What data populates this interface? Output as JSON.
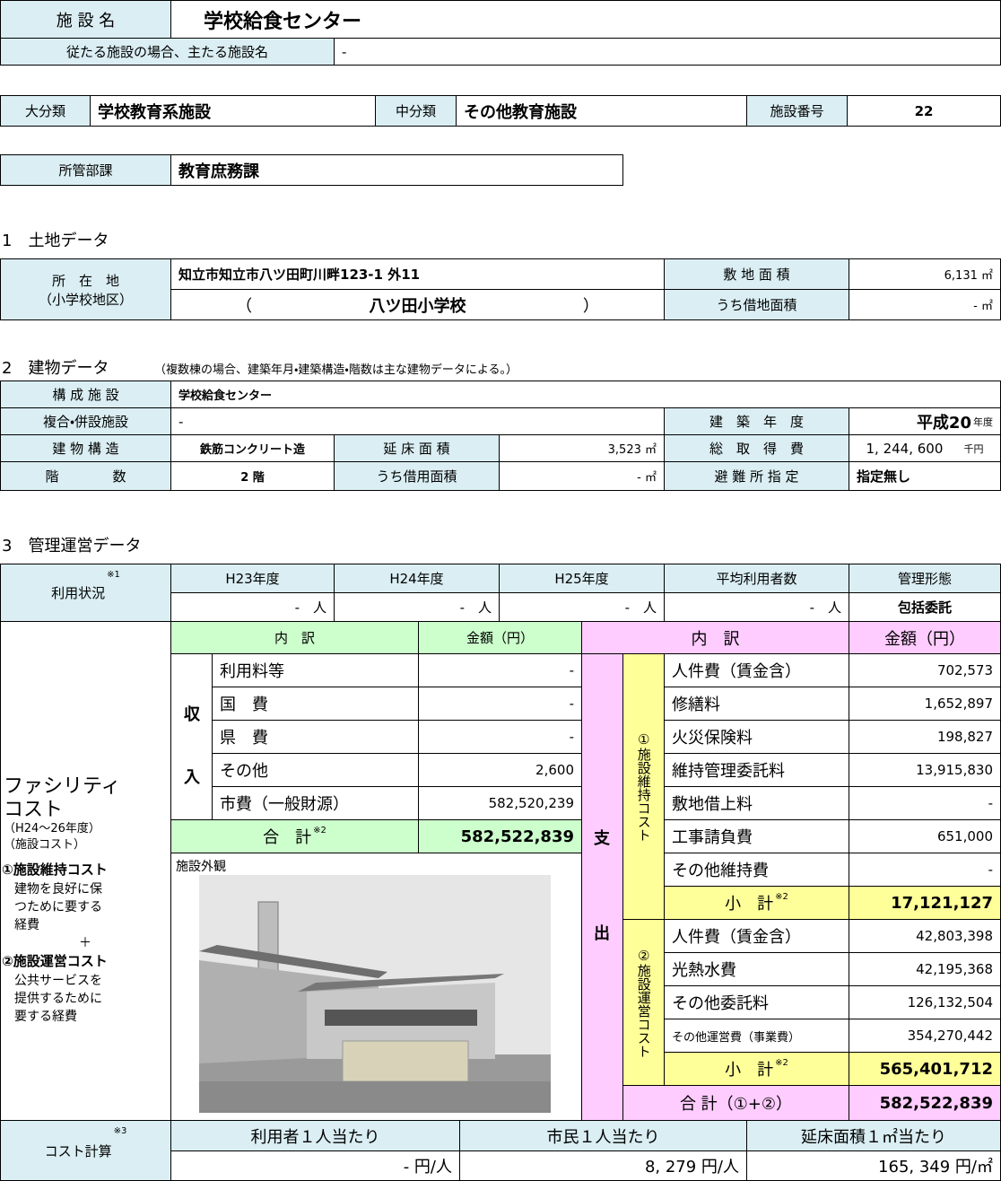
{
  "header": {
    "facility_name_label": "施 設 名",
    "facility_name": "学校給食センター",
    "main_facility_label": "従たる施設の場合、主たる施設名",
    "main_facility": "-"
  },
  "classification": {
    "major_label": "大分類",
    "major": "学校教育系施設",
    "middle_label": "中分類",
    "middle": "その他教育施設",
    "number_label": "施設番号",
    "number": "22"
  },
  "department": {
    "label": "所管部課",
    "value": "教育庶務課"
  },
  "land": {
    "title": "1　土地データ",
    "location_label": "所　在　地",
    "district_label": "（小学校地区）",
    "address": "知立市知立市八ツ田町川畔123-1 外11",
    "district_open": "（",
    "district": "八ツ田小学校",
    "district_close": "）",
    "site_area_label": "敷 地 面 積",
    "site_area": "6,131 ㎡",
    "leased_area_label": "うち借地面積",
    "leased_area": "- ㎡"
  },
  "building": {
    "title": "2　建物データ",
    "note": "（複数棟の場合、建築年月・建築構造・階数は主な建物データによる。）",
    "components_label": "構 成 施 設",
    "components": "学校給食センター",
    "combined_label": "複合・併設施設",
    "combined": "-",
    "year_label": "建　築　年　度",
    "year": "平成20",
    "year_unit": "年度",
    "structure_label": "建 物 構 造",
    "structure": "鉄筋コンクリート造",
    "floor_area_label": "延 床 面 積",
    "floor_area": "3,523 ㎡",
    "cost_label": "総　取　得　費",
    "cost": "1, 244, 600",
    "cost_unit": "千円",
    "floors_label": "階　　　　数",
    "floors": "2 階",
    "leased_floor_label": "うち借用面積",
    "leased_floor": "- ㎡",
    "shelter_label": "避 難 所 指 定",
    "shelter": "指定無し"
  },
  "management": {
    "title": "3　管理運営データ",
    "usage": {
      "label": "利用状況",
      "note": "※1",
      "headers": [
        "H23年度",
        "H24年度",
        "H25年度",
        "平均利用者数",
        "管理形態"
      ],
      "values": [
        "-　人",
        "-　人",
        "-　人",
        "-　人",
        "包括委託"
      ]
    }
  },
  "facility_cost": {
    "title": "ファシリティ",
    "title2": "コスト",
    "period": "（H24～26年度）",
    "subtitle": "（施設コスト）",
    "desc1_title": "①施設維持コスト",
    "desc1": [
      "建物を良好に保",
      "つために要する",
      "経費"
    ],
    "plus": "＋",
    "desc2_title": "②施設運営コスト",
    "desc2": [
      "公共サービスを",
      "提供するために",
      "要する経費"
    ],
    "income": {
      "header_item": "内　訳",
      "header_amount": "金額（円）",
      "label_1": "収",
      "label_2": "入",
      "items": [
        {
          "name": "利用料等",
          "amount": "-"
        },
        {
          "name": "国　費",
          "amount": "-"
        },
        {
          "name": "県　費",
          "amount": "-"
        },
        {
          "name": "その他",
          "amount": "2,600"
        },
        {
          "name": "市費（一般財源）",
          "amount": "582,520,239"
        }
      ],
      "total_label": "合　計",
      "total_note": "※2",
      "total": "582,522,839"
    },
    "photo_label": "施設外観",
    "expense": {
      "header_item": "内　訳",
      "header_amount": "金額（円）",
      "label_1": "支",
      "label_2": "出",
      "maintenance": {
        "label": "①施設維持コスト",
        "items": [
          {
            "name": "人件費（賃金含）",
            "amount": "702,573"
          },
          {
            "name": "修繕料",
            "amount": "1,652,897"
          },
          {
            "name": "火災保険料",
            "amount": "198,827"
          },
          {
            "name": "維持管理委託料",
            "amount": "13,915,830"
          },
          {
            "name": "敷地借上料",
            "amount": "-"
          },
          {
            "name": "工事請負費",
            "amount": "651,000"
          },
          {
            "name": "その他維持費",
            "amount": "-"
          }
        ],
        "subtotal_label": "小　計",
        "subtotal_note": "※2",
        "subtotal": "17,121,127"
      },
      "operations": {
        "label": "②施設運営コスト",
        "items": [
          {
            "name": "人件費（賃金含）",
            "amount": "42,803,398"
          },
          {
            "name": "光熱水費",
            "amount": "42,195,368"
          },
          {
            "name": "その他委託料",
            "amount": "126,132,504"
          },
          {
            "name": "その他運営費（事業費）",
            "amount": "354,270,442"
          }
        ],
        "subtotal_label": "小　計",
        "subtotal_note": "※2",
        "subtotal": "565,401,712"
      },
      "total_label": "合 計（①+②）",
      "total": "582,522,839"
    }
  },
  "cost_calc": {
    "label": "コスト計算",
    "note": "※3",
    "headers": [
      "利用者１人当たり",
      "市民１人当たり",
      "延床面積１㎡当たり"
    ],
    "values": [
      "- 円/人",
      "8, 279 円/人",
      "165, 349 円/㎡"
    ]
  }
}
